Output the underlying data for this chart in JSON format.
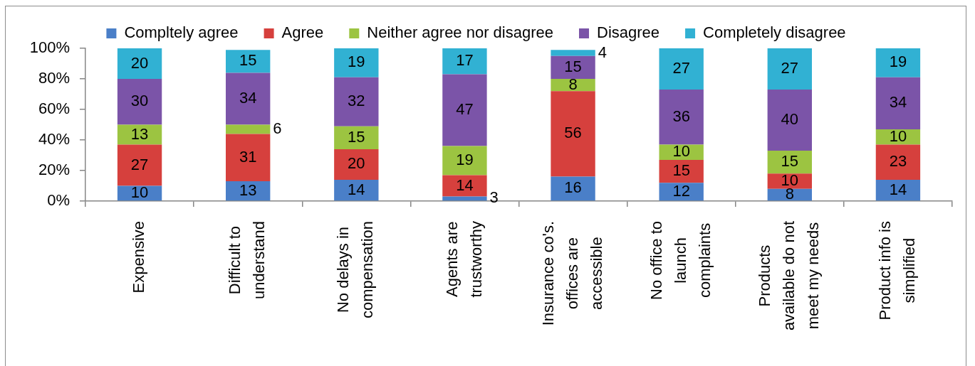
{
  "chart_data": {
    "type": "bar",
    "stacked": true,
    "categories": [
      "Expensive",
      "Difficult to understand",
      "No delays in compensation",
      "Agents are trustworthy",
      "Insurance co's. offices are accessible",
      "No office to launch complaints",
      "Products available do not meet my needs",
      "Product info is simplified"
    ],
    "series": [
      {
        "name": "Compltely agree",
        "color": "#4a7fc8",
        "values": [
          10,
          13,
          14,
          3,
          16,
          12,
          8,
          14
        ]
      },
      {
        "name": "Agree",
        "color": "#d6403d",
        "values": [
          27,
          31,
          20,
          14,
          56,
          15,
          10,
          23
        ]
      },
      {
        "name": "Neither agree nor disagree",
        "color": "#9cc441",
        "values": [
          13,
          6,
          15,
          19,
          8,
          10,
          15,
          10
        ]
      },
      {
        "name": "Disagree",
        "color": "#7b54a8",
        "values": [
          30,
          34,
          32,
          47,
          15,
          36,
          40,
          34
        ]
      },
      {
        "name": "Completely disagree",
        "color": "#31b1d3",
        "values": [
          20,
          15,
          19,
          17,
          4,
          27,
          27,
          19
        ]
      }
    ],
    "ylim": [
      0,
      100
    ],
    "yticks": [
      {
        "value": 0,
        "label": "0%"
      },
      {
        "value": 20,
        "label": "20%"
      },
      {
        "value": 40,
        "label": "40%"
      },
      {
        "value": 60,
        "label": "60%"
      },
      {
        "value": 80,
        "label": "80%"
      },
      {
        "value": 100,
        "label": "100%"
      }
    ],
    "legend": "top",
    "data_labels": true
  }
}
